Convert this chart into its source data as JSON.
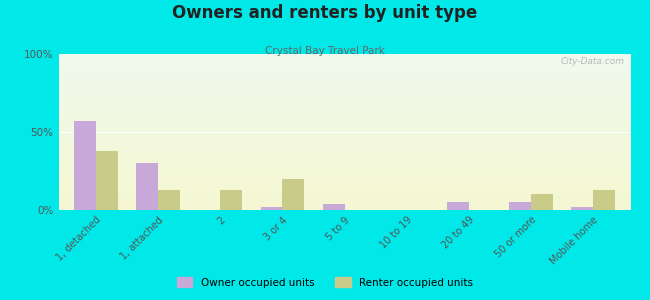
{
  "title": "Owners and renters by unit type",
  "subtitle": "Crystal Bay Travel Park",
  "categories": [
    "1, detached",
    "1, attached",
    "2",
    "3 or 4",
    "5 to 9",
    "10 to 19",
    "20 to 49",
    "50 or more",
    "Mobile home"
  ],
  "owner_values": [
    57,
    30,
    0,
    2,
    4,
    0,
    5,
    5,
    2
  ],
  "renter_values": [
    38,
    13,
    13,
    20,
    0,
    0,
    0,
    10,
    13
  ],
  "owner_color": "#c8a8d8",
  "renter_color": "#c8cc88",
  "bg_outer": "#00e8e8",
  "ylim": [
    0,
    100
  ],
  "yticks": [
    0,
    50,
    100
  ],
  "ytick_labels": [
    "0%",
    "50%",
    "100%"
  ],
  "bar_width": 0.35,
  "legend_owner": "Owner occupied units",
  "legend_renter": "Renter occupied units",
  "watermark": "City-Data.com"
}
